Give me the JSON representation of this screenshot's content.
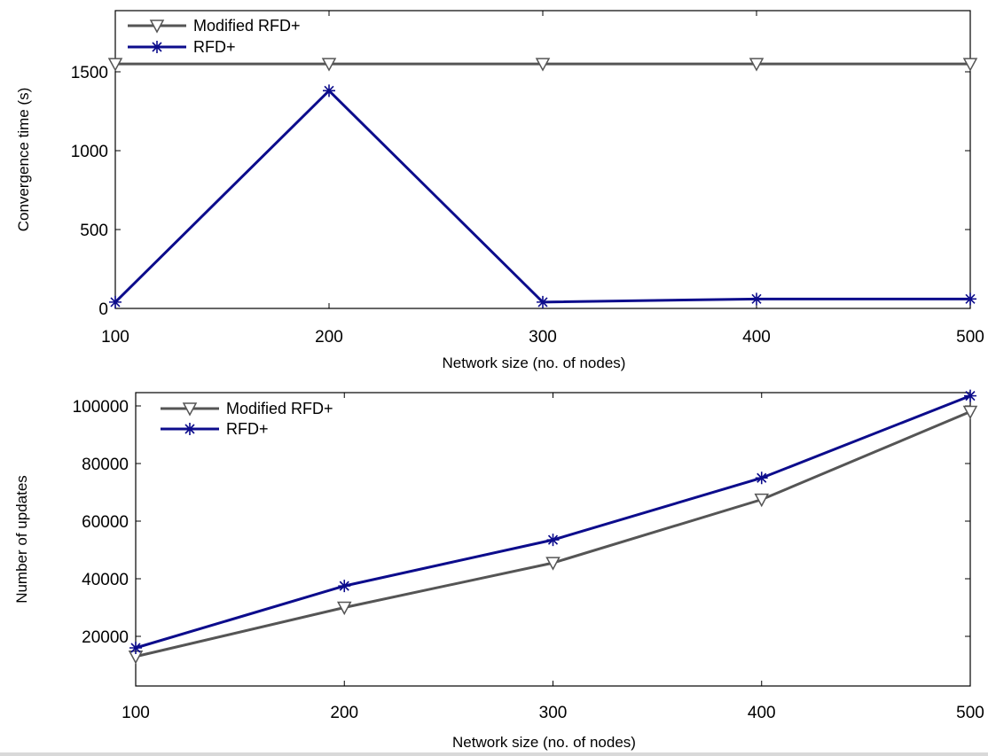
{
  "chart_data": [
    {
      "type": "line",
      "title": "",
      "xlabel": "Network size  (no. of nodes)",
      "ylabel": "Convergence time (s)",
      "x": [
        100,
        200,
        300,
        400,
        500
      ],
      "xticks": [
        "100",
        "200",
        "300",
        "400",
        "500"
      ],
      "xlim": [
        100,
        500
      ],
      "yticks": [
        "0",
        "500",
        "1000",
        "1500"
      ],
      "ylim": [
        0,
        1500
      ],
      "grid": false,
      "legend_position": "top-left",
      "series": [
        {
          "name": "Modified RFD+",
          "values": [
            1550,
            1550,
            1550,
            1550,
            1550
          ],
          "color": "#555555",
          "marker": "triangle-down"
        },
        {
          "name": "RFD+",
          "values": [
            40,
            1380,
            40,
            60,
            60
          ],
          "color": "#0c0c8c",
          "marker": "star"
        }
      ]
    },
    {
      "type": "line",
      "title": "",
      "xlabel": "Network size  (no. of nodes)",
      "ylabel": "Number of  updates",
      "x": [
        100,
        200,
        300,
        400,
        500
      ],
      "xticks": [
        "100",
        "200",
        "300",
        "400",
        "500"
      ],
      "xlim": [
        100,
        500
      ],
      "yticks": [
        "20000",
        "40000",
        "60000",
        "80000",
        "100000"
      ],
      "ylim": [
        0,
        100000
      ],
      "grid": false,
      "legend_position": "top-left",
      "series": [
        {
          "name": "Modified RFD+",
          "values": [
            13000,
            30000,
            45500,
            67500,
            98000
          ],
          "color": "#555555",
          "marker": "triangle-down"
        },
        {
          "name": "RFD+",
          "values": [
            16000,
            37500,
            53500,
            75000,
            103500
          ],
          "color": "#0c0c8c",
          "marker": "star"
        }
      ]
    }
  ]
}
